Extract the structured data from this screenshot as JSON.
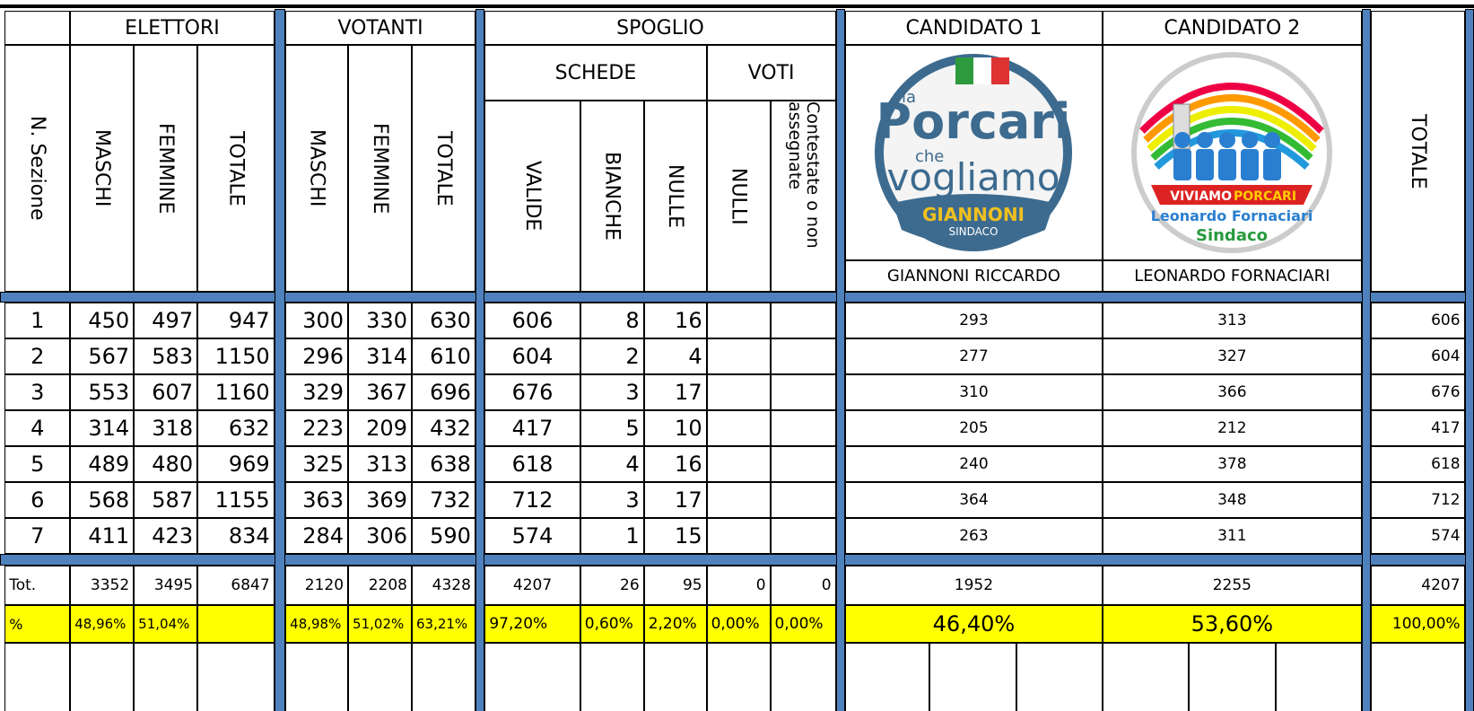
{
  "header": {
    "sezione": "N. Sezione",
    "groups": [
      "ELETTORI",
      "VOTANTI",
      "SPOGLIO",
      "CANDIDATO 1",
      "CANDIDATO 2"
    ],
    "elettori_cols": [
      "MASCHI",
      "FEMMINE",
      "TOTALE"
    ],
    "votanti_cols": [
      "MASCHI",
      "FEMMINE",
      "TOTALE"
    ],
    "schede": "SCHEDE",
    "voti": "VOTI",
    "spoglio_cols": [
      "VALIDE",
      "BIANCHE",
      "NULLE",
      "NULLI",
      "Contestate o non assegnate"
    ],
    "candidates": [
      "GIANNONI RICCARDO",
      "LEONARDO FORNACIARI"
    ],
    "totale": "TOTALE"
  },
  "logos": [
    {
      "lines": [
        "la",
        "Porcari",
        "che",
        "vogliamo",
        "GIANNONI",
        "SINDACO"
      ]
    },
    {
      "lines": [
        "VIVIAMO",
        "PORCARI",
        "Leonardo Fornaciari",
        "Sindaco"
      ]
    }
  ],
  "rows": [
    {
      "n": 1,
      "elettori": [
        450,
        497,
        947
      ],
      "votanti": [
        300,
        330,
        630
      ],
      "schede": [
        606,
        8,
        16
      ],
      "candidati": [
        293,
        313
      ],
      "totale": 606
    },
    {
      "n": 2,
      "elettori": [
        567,
        583,
        1150
      ],
      "votanti": [
        296,
        314,
        610
      ],
      "schede": [
        604,
        2,
        4
      ],
      "candidati": [
        277,
        327
      ],
      "totale": 604
    },
    {
      "n": 3,
      "elettori": [
        553,
        607,
        1160
      ],
      "votanti": [
        329,
        367,
        696
      ],
      "schede": [
        676,
        3,
        17
      ],
      "candidati": [
        310,
        366
      ],
      "totale": 676
    },
    {
      "n": 4,
      "elettori": [
        314,
        318,
        632
      ],
      "votanti": [
        223,
        209,
        432
      ],
      "schede": [
        417,
        5,
        10
      ],
      "candidati": [
        205,
        212
      ],
      "totale": 417
    },
    {
      "n": 5,
      "elettori": [
        489,
        480,
        969
      ],
      "votanti": [
        325,
        313,
        638
      ],
      "schede": [
        618,
        4,
        16
      ],
      "candidati": [
        240,
        378
      ],
      "totale": 618
    },
    {
      "n": 6,
      "elettori": [
        568,
        587,
        1155
      ],
      "votanti": [
        363,
        369,
        732
      ],
      "schede": [
        712,
        3,
        17
      ],
      "candidati": [
        364,
        348
      ],
      "totale": 712
    },
    {
      "n": 7,
      "elettori": [
        411,
        423,
        834
      ],
      "votanti": [
        284,
        306,
        590
      ],
      "schede": [
        574,
        1,
        15
      ],
      "candidati": [
        263,
        311
      ],
      "totale": 574
    }
  ],
  "total_row": {
    "label": "Tot.",
    "elettori": [
      3352,
      3495,
      6847
    ],
    "votanti": [
      2120,
      2208,
      4328
    ],
    "schede": [
      4207,
      26,
      95
    ],
    "voti": [
      0,
      0
    ],
    "candidati": [
      1952,
      2255
    ],
    "totale": 4207
  },
  "percent_row": {
    "label": "%",
    "elettori": [
      "48,96%",
      "51,04%"
    ],
    "votanti": [
      "48,98%",
      "51,02%",
      "63,21%"
    ],
    "spoglio": [
      "97,20%",
      "0,60%",
      "2,20%",
      "0,00%",
      "0,00%"
    ],
    "candidati": [
      "46,40%",
      "53,60%"
    ],
    "totale": "100,00%"
  }
}
